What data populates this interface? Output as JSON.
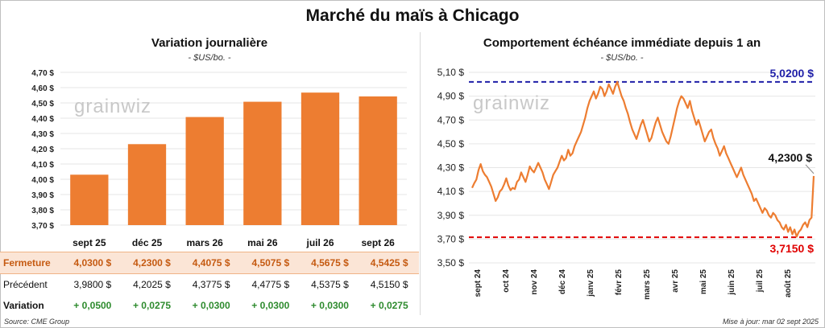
{
  "title": "Marché du maïs à Chicago",
  "left_chart": {
    "title": "Variation journalière",
    "unit": "- $US/bo. -",
    "watermark": "grainwiz"
  },
  "right_chart": {
    "title": "Comportement échéance immédiate depuis 1 an",
    "unit": "- $US/bo. -",
    "watermark": "grainwiz",
    "max_label": "5,0200 $",
    "min_label": "3,7150 $",
    "last_label": "4,2300 $"
  },
  "table": {
    "rows": [
      {
        "label": "Fermeture",
        "cells": [
          "4,0300  $",
          "4,2300  $",
          "4,4075  $",
          "4,5075  $",
          "4,5675  $",
          "4,5425  $"
        ]
      },
      {
        "label": "Précédent",
        "cells": [
          "3,9800  $",
          "4,2025  $",
          "4,3775  $",
          "4,4775  $",
          "4,5375  $",
          "4,5150  $"
        ]
      },
      {
        "label": "Variation",
        "cells": [
          "+ 0,0500",
          "+ 0,0275",
          "+ 0,0300",
          "+ 0,0300",
          "+ 0,0300",
          "+ 0,0275"
        ]
      }
    ]
  },
  "footer": {
    "source": "Source: CME Group",
    "updated": "Mise à jour: mar 02 sept 2025"
  },
  "colors": {
    "bar": "#ed7d31",
    "line": "#ed7d31",
    "max_line": "#1f1fa8",
    "min_line": "#e00000"
  },
  "chart_data": [
    {
      "type": "bar",
      "categories": [
        "sept 25",
        "déc 25",
        "mars 26",
        "mai 26",
        "juil 26",
        "sept 26"
      ],
      "values": [
        4.03,
        4.23,
        4.4075,
        4.5075,
        4.5675,
        4.5425
      ],
      "ylim": [
        3.7,
        4.7
      ],
      "yticks": [
        "3,70 $",
        "3,80 $",
        "3,90 $",
        "4,00 $",
        "4,10 $",
        "4,20 $",
        "4,30 $",
        "4,40 $",
        "4,50 $",
        "4,60 $",
        "4,70 $"
      ],
      "grid": true
    },
    {
      "type": "line",
      "ylim": [
        3.5,
        5.1
      ],
      "yticks": [
        "3,50 $",
        "3,70 $",
        "3,90 $",
        "4,10 $",
        "4,30 $",
        "4,50 $",
        "4,70 $",
        "4,90 $",
        "5,10 $"
      ],
      "xticks": [
        "sept 24",
        "oct 24",
        "nov 24",
        "déc 24",
        "janv 25",
        "févr 25",
        "mars 25",
        "avr 25",
        "mai 25",
        "juin 25",
        "juil 25",
        "août 25"
      ],
      "reference_lines": {
        "max": 5.02,
        "min": 3.715
      },
      "values": [
        4.13,
        4.17,
        4.2,
        4.28,
        4.33,
        4.27,
        4.24,
        4.22,
        4.18,
        4.14,
        4.08,
        4.02,
        4.05,
        4.1,
        4.12,
        4.16,
        4.21,
        4.15,
        4.11,
        4.13,
        4.12,
        4.18,
        4.2,
        4.26,
        4.22,
        4.18,
        4.24,
        4.31,
        4.28,
        4.26,
        4.3,
        4.34,
        4.3,
        4.26,
        4.2,
        4.16,
        4.12,
        4.18,
        4.24,
        4.27,
        4.3,
        4.35,
        4.4,
        4.36,
        4.38,
        4.45,
        4.4,
        4.42,
        4.48,
        4.52,
        4.56,
        4.6,
        4.66,
        4.72,
        4.8,
        4.86,
        4.9,
        4.94,
        4.88,
        4.92,
        4.98,
        4.96,
        4.9,
        4.94,
        5.0,
        4.96,
        4.92,
        4.98,
        5.02,
        4.96,
        4.9,
        4.86,
        4.8,
        4.75,
        4.68,
        4.62,
        4.58,
        4.54,
        4.6,
        4.66,
        4.7,
        4.64,
        4.58,
        4.52,
        4.55,
        4.62,
        4.68,
        4.72,
        4.66,
        4.6,
        4.56,
        4.52,
        4.5,
        4.56,
        4.64,
        4.72,
        4.8,
        4.86,
        4.9,
        4.88,
        4.84,
        4.8,
        4.86,
        4.78,
        4.72,
        4.66,
        4.7,
        4.64,
        4.58,
        4.52,
        4.56,
        4.6,
        4.62,
        4.55,
        4.5,
        4.46,
        4.4,
        4.44,
        4.48,
        4.42,
        4.38,
        4.34,
        4.3,
        4.26,
        4.22,
        4.26,
        4.3,
        4.24,
        4.2,
        4.16,
        4.12,
        4.08,
        4.02,
        4.04,
        4.0,
        3.96,
        3.92,
        3.96,
        3.94,
        3.9,
        3.88,
        3.92,
        3.9,
        3.86,
        3.84,
        3.8,
        3.78,
        3.82,
        3.76,
        3.8,
        3.74,
        3.78,
        3.72,
        3.76,
        3.78,
        3.82,
        3.84,
        3.8,
        3.86,
        3.88,
        4.23
      ]
    }
  ]
}
